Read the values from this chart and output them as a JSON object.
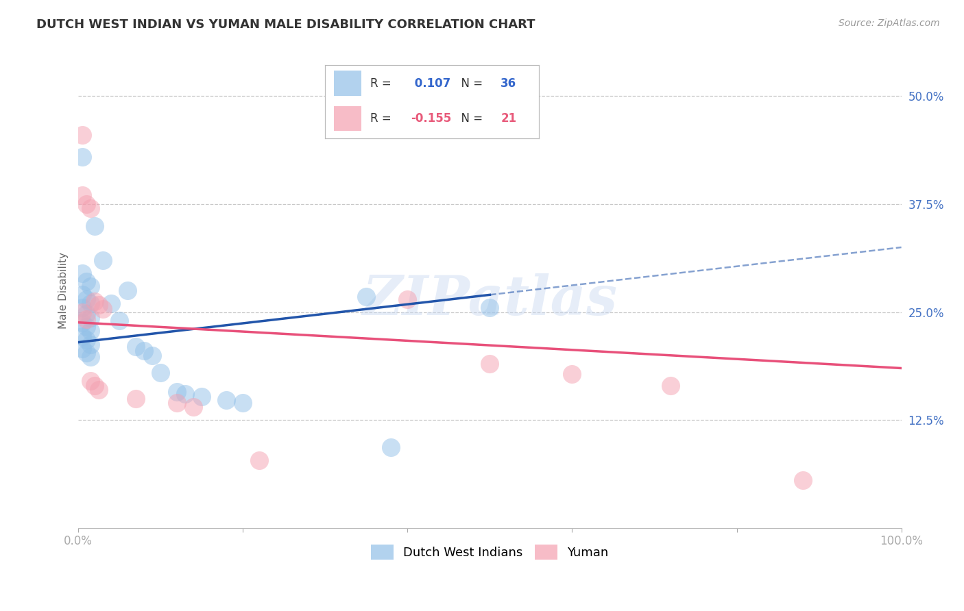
{
  "title": "DUTCH WEST INDIAN VS YUMAN MALE DISABILITY CORRELATION CHART",
  "source": "Source: ZipAtlas.com",
  "ylabel": "Male Disability",
  "xlim": [
    0.0,
    1.0
  ],
  "ylim": [
    0.0,
    0.55
  ],
  "xticks": [
    0.0,
    0.2,
    0.4,
    0.6,
    0.8,
    1.0
  ],
  "xticklabels": [
    "0.0%",
    "",
    "",
    "",
    "",
    "100.0%"
  ],
  "yticks": [
    0.125,
    0.25,
    0.375,
    0.5
  ],
  "yticklabels": [
    "12.5%",
    "25.0%",
    "37.5%",
    "50.0%"
  ],
  "grid_yticks": [
    0.125,
    0.25,
    0.375,
    0.5
  ],
  "blue_R": 0.107,
  "blue_N": 36,
  "pink_R": -0.155,
  "pink_N": 21,
  "blue_color": "#92C0E8",
  "pink_color": "#F4A0B0",
  "blue_line_color": "#2255AA",
  "pink_line_color": "#E8507A",
  "blue_points": [
    [
      0.005,
      0.43
    ],
    [
      0.005,
      0.295
    ],
    [
      0.01,
      0.285
    ],
    [
      0.015,
      0.28
    ],
    [
      0.005,
      0.27
    ],
    [
      0.01,
      0.265
    ],
    [
      0.015,
      0.26
    ],
    [
      0.005,
      0.255
    ],
    [
      0.01,
      0.248
    ],
    [
      0.015,
      0.243
    ],
    [
      0.005,
      0.238
    ],
    [
      0.01,
      0.233
    ],
    [
      0.015,
      0.228
    ],
    [
      0.005,
      0.222
    ],
    [
      0.01,
      0.218
    ],
    [
      0.015,
      0.212
    ],
    [
      0.005,
      0.208
    ],
    [
      0.01,
      0.203
    ],
    [
      0.015,
      0.198
    ],
    [
      0.02,
      0.35
    ],
    [
      0.03,
      0.31
    ],
    [
      0.04,
      0.26
    ],
    [
      0.05,
      0.24
    ],
    [
      0.06,
      0.275
    ],
    [
      0.07,
      0.21
    ],
    [
      0.08,
      0.205
    ],
    [
      0.09,
      0.2
    ],
    [
      0.1,
      0.18
    ],
    [
      0.12,
      0.158
    ],
    [
      0.13,
      0.155
    ],
    [
      0.15,
      0.152
    ],
    [
      0.18,
      0.148
    ],
    [
      0.2,
      0.145
    ],
    [
      0.35,
      0.268
    ],
    [
      0.38,
      0.093
    ],
    [
      0.5,
      0.255
    ]
  ],
  "pink_points": [
    [
      0.005,
      0.455
    ],
    [
      0.005,
      0.385
    ],
    [
      0.01,
      0.375
    ],
    [
      0.015,
      0.37
    ],
    [
      0.02,
      0.262
    ],
    [
      0.025,
      0.258
    ],
    [
      0.03,
      0.254
    ],
    [
      0.005,
      0.25
    ],
    [
      0.01,
      0.242
    ],
    [
      0.015,
      0.17
    ],
    [
      0.02,
      0.165
    ],
    [
      0.025,
      0.16
    ],
    [
      0.07,
      0.15
    ],
    [
      0.12,
      0.145
    ],
    [
      0.14,
      0.14
    ],
    [
      0.22,
      0.078
    ],
    [
      0.4,
      0.265
    ],
    [
      0.5,
      0.19
    ],
    [
      0.6,
      0.178
    ],
    [
      0.72,
      0.165
    ],
    [
      0.88,
      0.055
    ]
  ],
  "watermark": "ZIPatlas",
  "bg_color": "#FFFFFF"
}
